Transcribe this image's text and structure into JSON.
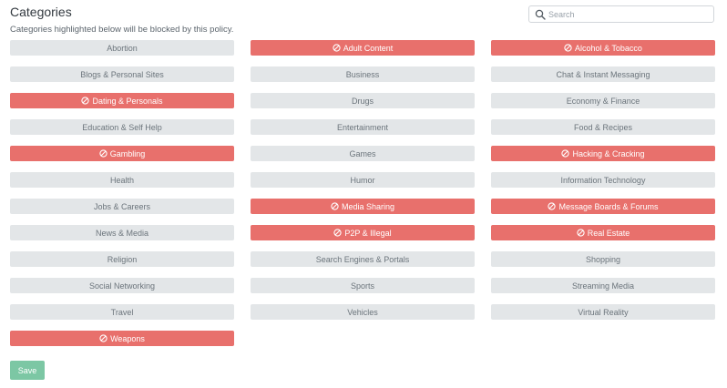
{
  "header": {
    "title": "Categories",
    "subtitle": "Categories highlighted below will be blocked by this policy."
  },
  "search": {
    "placeholder": "Search",
    "value": ""
  },
  "colors": {
    "blocked": "#e8706c",
    "allowed": "#e3e6e8",
    "save": "#7cc7a4"
  },
  "categories": [
    {
      "label": "Abortion",
      "blocked": false
    },
    {
      "label": "Adult Content",
      "blocked": true
    },
    {
      "label": "Alcohol & Tobacco",
      "blocked": true
    },
    {
      "label": "Blogs & Personal Sites",
      "blocked": false
    },
    {
      "label": "Business",
      "blocked": false
    },
    {
      "label": "Chat & Instant Messaging",
      "blocked": false
    },
    {
      "label": "Dating & Personals",
      "blocked": true
    },
    {
      "label": "Drugs",
      "blocked": false
    },
    {
      "label": "Economy & Finance",
      "blocked": false
    },
    {
      "label": "Education & Self Help",
      "blocked": false
    },
    {
      "label": "Entertainment",
      "blocked": false
    },
    {
      "label": "Food & Recipes",
      "blocked": false
    },
    {
      "label": "Gambling",
      "blocked": true
    },
    {
      "label": "Games",
      "blocked": false
    },
    {
      "label": "Hacking & Cracking",
      "blocked": true
    },
    {
      "label": "Health",
      "blocked": false
    },
    {
      "label": "Humor",
      "blocked": false
    },
    {
      "label": "Information Technology",
      "blocked": false
    },
    {
      "label": "Jobs & Careers",
      "blocked": false
    },
    {
      "label": "Media Sharing",
      "blocked": true
    },
    {
      "label": "Message Boards & Forums",
      "blocked": true
    },
    {
      "label": "News & Media",
      "blocked": false
    },
    {
      "label": "P2P & Illegal",
      "blocked": true
    },
    {
      "label": "Real Estate",
      "blocked": true
    },
    {
      "label": "Religion",
      "blocked": false
    },
    {
      "label": "Search Engines & Portals",
      "blocked": false
    },
    {
      "label": "Shopping",
      "blocked": false
    },
    {
      "label": "Social Networking",
      "blocked": false
    },
    {
      "label": "Sports",
      "blocked": false
    },
    {
      "label": "Streaming Media",
      "blocked": false
    },
    {
      "label": "Travel",
      "blocked": false
    },
    {
      "label": "Vehicles",
      "blocked": false
    },
    {
      "label": "Virtual Reality",
      "blocked": false
    },
    {
      "label": "Weapons",
      "blocked": true
    }
  ],
  "save_label": "Save"
}
